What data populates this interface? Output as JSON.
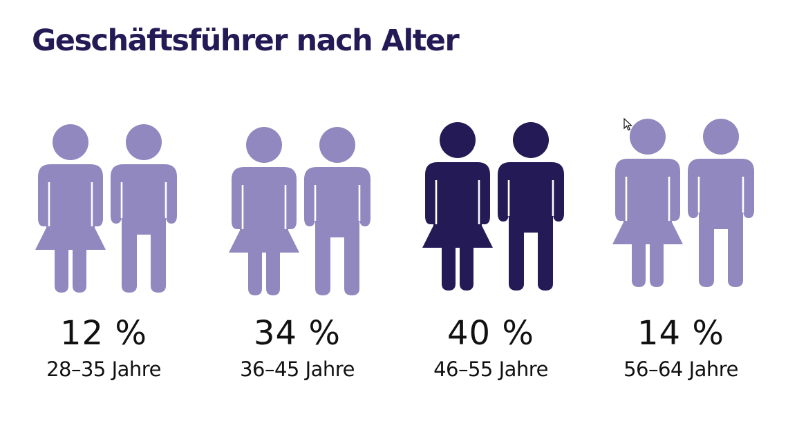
{
  "title": "Geschäftsführer nach Alter",
  "colors": {
    "normal": "#9088be",
    "highlight": "#231a56",
    "text": "#111111"
  },
  "highlight_index": 2,
  "chart_data": {
    "type": "bar",
    "title": "Geschäftsführer nach Alter",
    "unit": "%",
    "categories": [
      "28–35 Jahre",
      "36–45 Jahre",
      "46–55 Jahre",
      "56–64 Jahre"
    ],
    "values": [
      12,
      34,
      40,
      14
    ],
    "value_labels": [
      "12 %",
      "34 %",
      "40 %",
      "14 %"
    ],
    "icons": [
      "woman-icon",
      "man-icon"
    ]
  }
}
